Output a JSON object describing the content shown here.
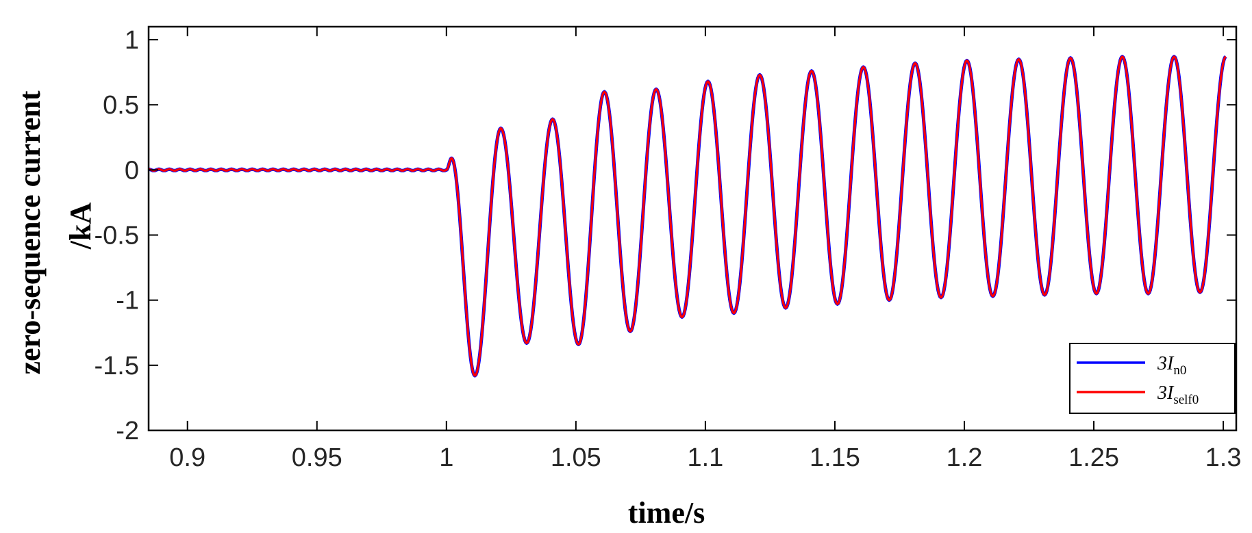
{
  "chart_data": {
    "type": "line",
    "title": "",
    "xlabel": "time/s",
    "ylabel_lines": [
      "zero-sequence current",
      "/kA"
    ],
    "xlim": [
      0.885,
      1.305
    ],
    "ylim": [
      -2,
      1.1
    ],
    "xticks": [
      0.9,
      0.95,
      1,
      1.05,
      1.1,
      1.15,
      1.2,
      1.25,
      1.3
    ],
    "xtick_labels": [
      "0.9",
      "0.95",
      "1",
      "1.05",
      "1.1",
      "1.15",
      "1.2",
      "1.25",
      "1.3"
    ],
    "yticks": [
      -2,
      -1.5,
      -1,
      -0.5,
      0,
      0.5,
      1
    ],
    "ytick_labels": [
      "-2",
      "-1.5",
      "-1",
      "-0.5",
      "0",
      "0.5",
      "1"
    ],
    "grid": false,
    "legend_position": "bottom-right",
    "fault_time": 1.0,
    "series": [
      {
        "name": "3In0",
        "legend_main": "3I",
        "legend_sub": "n0",
        "color": "#0000ff",
        "x": [
          0.885,
          1.0,
          1.002,
          1.011,
          1.021,
          1.031,
          1.041,
          1.051,
          1.061,
          1.071,
          1.081,
          1.091,
          1.101,
          1.111,
          1.121,
          1.131,
          1.141,
          1.151,
          1.161,
          1.171,
          1.181,
          1.191,
          1.201,
          1.211,
          1.221,
          1.231,
          1.241,
          1.251,
          1.261,
          1.271,
          1.281,
          1.291,
          1.301
        ],
        "y": [
          0.0,
          0.0,
          0.09,
          -1.58,
          0.32,
          -1.33,
          0.39,
          -1.34,
          0.6,
          -1.24,
          0.62,
          -1.13,
          0.68,
          -1.1,
          0.73,
          -1.06,
          0.76,
          -1.03,
          0.79,
          -1.0,
          0.82,
          -0.98,
          0.84,
          -0.97,
          0.85,
          -0.96,
          0.86,
          -0.95,
          0.87,
          -0.95,
          0.87,
          -0.94,
          0.87
        ]
      },
      {
        "name": "3Iself0",
        "legend_main": "3I",
        "legend_sub": "self0",
        "color": "#ff0000",
        "x": [
          0.885,
          1.0,
          1.002,
          1.011,
          1.021,
          1.031,
          1.041,
          1.051,
          1.061,
          1.071,
          1.081,
          1.091,
          1.101,
          1.111,
          1.121,
          1.131,
          1.141,
          1.151,
          1.161,
          1.171,
          1.181,
          1.191,
          1.201,
          1.211,
          1.221,
          1.231,
          1.241,
          1.251,
          1.261,
          1.271,
          1.281,
          1.291,
          1.301
        ],
        "y": [
          0.0,
          0.0,
          0.09,
          -1.58,
          0.32,
          -1.33,
          0.39,
          -1.34,
          0.6,
          -1.24,
          0.62,
          -1.13,
          0.68,
          -1.1,
          0.73,
          -1.06,
          0.76,
          -1.03,
          0.79,
          -1.0,
          0.82,
          -0.98,
          0.84,
          -0.97,
          0.85,
          -0.96,
          0.86,
          -0.95,
          0.87,
          -0.95,
          0.87,
          -0.94,
          0.87
        ]
      }
    ]
  }
}
